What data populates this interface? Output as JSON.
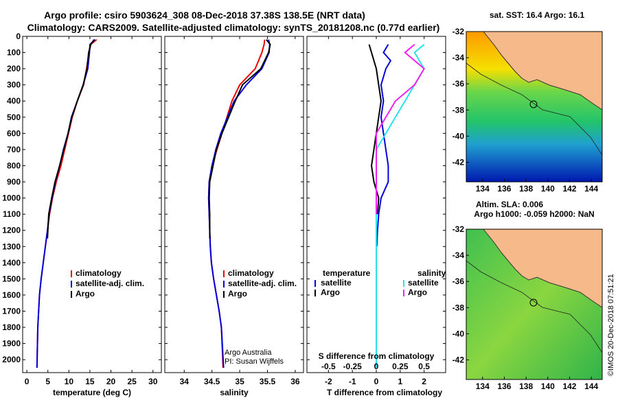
{
  "header": {
    "title1": "Argo profile: csiro 5903624_308 08-Dec-2018 37.38S 138.5E (NRT data)",
    "title2": "Climatology: CARS2009. Satellite-adjusted climatology: synTS_20181208.nc (0.77d earlier)"
  },
  "map_titles": {
    "sst": "sat. SST: 16.4 Argo: 16.1",
    "sla1": "Altim. SLA: 0.006",
    "sla2": "Argo h1000: -0.059 h2000: NaN"
  },
  "credit": {
    "argo": "Argo Australia",
    "pi": "PI: Susan Wijffels",
    "imos": "©IMOS 20-Dec-2018 07:51:21"
  },
  "colors": {
    "climatology": "#ee0000",
    "satellite": "#0000dd",
    "argo": "#000000",
    "sat_salinity": "#22e4ee",
    "argo_salinity": "#ee22ee",
    "land": "#f5b98a"
  },
  "chart_data": [
    {
      "type": "line",
      "panel": "temperature",
      "xlabel": "temperature (deg C)",
      "ylabel": "",
      "xlim": [
        -1,
        32
      ],
      "ylim": [
        2080,
        0
      ],
      "xticks": [
        0,
        5,
        10,
        15,
        20,
        25,
        30
      ],
      "yticks": [
        0,
        100,
        200,
        300,
        400,
        500,
        600,
        700,
        800,
        900,
        1000,
        1100,
        1200,
        1300,
        1400,
        1500,
        1600,
        1700,
        1800,
        1900,
        2000
      ],
      "legend": [
        "climatology",
        "satellite-adj. clim.",
        "Argo"
      ],
      "series": [
        {
          "name": "climatology",
          "color": "#ee0000",
          "x": [
            16.6,
            15.2,
            14.8,
            14.2,
            13.5,
            12.0,
            10.8,
            9.9,
            9.0,
            8.1,
            7.0,
            6.1,
            5.4,
            4.9,
            4.4,
            3.9,
            3.4,
            3.0,
            2.8,
            2.6,
            2.4
          ],
          "y": [
            20,
            50,
            100,
            200,
            300,
            400,
            500,
            600,
            700,
            800,
            900,
            1000,
            1100,
            1200,
            1300,
            1400,
            1500,
            1600,
            1700,
            1800,
            2050
          ]
        },
        {
          "name": "satellite-adj. clim.",
          "color": "#0000dd",
          "x": [
            16.2,
            15.0,
            14.9,
            14.5,
            13.4,
            12.0,
            10.6,
            9.8,
            8.7,
            7.8,
            6.8,
            6.0,
            5.3,
            4.9,
            4.4,
            3.9,
            3.4,
            3.0,
            2.8,
            2.6,
            2.4
          ],
          "y": [
            20,
            50,
            100,
            200,
            300,
            400,
            500,
            600,
            700,
            800,
            900,
            1000,
            1100,
            1200,
            1300,
            1400,
            1500,
            1600,
            1700,
            1800,
            2050
          ]
        },
        {
          "name": "Argo",
          "color": "#000000",
          "x": [
            16.0,
            15.2,
            14.7,
            14.3,
            13.4,
            12.0,
            10.7,
            9.8,
            8.8,
            7.8,
            6.7,
            5.9,
            5.2,
            4.9
          ],
          "y": [
            20,
            50,
            100,
            200,
            300,
            400,
            500,
            600,
            700,
            800,
            900,
            1000,
            1100,
            1250
          ]
        }
      ]
    },
    {
      "type": "line",
      "panel": "salinity",
      "xlabel": "salinity",
      "ylabel": "",
      "xlim": [
        33.65,
        36.15
      ],
      "ylim": [
        2080,
        0
      ],
      "xticks": [
        34,
        34.5,
        35,
        35.5,
        36
      ],
      "legend": [
        "climatology",
        "satellite-adj. clim.",
        "Argo"
      ],
      "series": [
        {
          "name": "climatology",
          "color": "#ee0000",
          "x": [
            35.45,
            35.44,
            35.4,
            35.28,
            35.0,
            34.86,
            34.77,
            34.68,
            34.59,
            34.5,
            34.45,
            34.44,
            34.45,
            34.46,
            34.47,
            34.49,
            34.53,
            34.58,
            34.63,
            34.67,
            34.7
          ],
          "y": [
            20,
            50,
            100,
            200,
            300,
            400,
            500,
            600,
            700,
            800,
            900,
            1000,
            1100,
            1200,
            1300,
            1400,
            1500,
            1600,
            1700,
            1800,
            2050
          ]
        },
        {
          "name": "satellite-adj. clim.",
          "color": "#0000dd",
          "x": [
            35.52,
            35.54,
            35.53,
            35.4,
            35.12,
            34.9,
            34.78,
            34.66,
            34.57,
            34.5,
            34.45,
            34.44,
            34.45,
            34.46,
            34.47,
            34.49,
            34.53,
            34.58,
            34.63,
            34.67,
            34.71
          ],
          "y": [
            20,
            50,
            100,
            200,
            300,
            400,
            500,
            600,
            700,
            800,
            900,
            1000,
            1100,
            1200,
            1300,
            1400,
            1500,
            1600,
            1700,
            1800,
            2050
          ]
        },
        {
          "name": "Argo",
          "color": "#000000",
          "x": [
            35.48,
            35.55,
            35.52,
            35.38,
            35.05,
            34.92,
            34.8,
            34.68,
            34.58,
            34.52,
            34.46,
            34.45,
            34.46,
            34.46
          ],
          "y": [
            20,
            50,
            100,
            200,
            300,
            400,
            500,
            600,
            700,
            800,
            900,
            1000,
            1100,
            1250
          ]
        }
      ]
    },
    {
      "type": "line",
      "panel": "difference",
      "xlabel": "T difference from climatology",
      "xlabel2": "S difference from climatology",
      "xlim": [
        -2.9,
        2.9
      ],
      "ylim": [
        2080,
        0
      ],
      "xticks": [
        -2,
        -1,
        0,
        1,
        2
      ],
      "xticks2": [
        "-0.5",
        "-0.25",
        "0",
        "0.25",
        "0.5"
      ],
      "legend_left_title": "temperature",
      "legend_right_title": "salinity",
      "legend": [
        "satellite",
        "Argo",
        "satellite",
        "Argo"
      ],
      "series": [
        {
          "name": "satellite",
          "group": "temperature",
          "color": "#0000dd",
          "x": [
            0.5,
            0.3,
            0.6,
            0.4,
            0.2,
            0.3,
            0.2,
            0.3,
            0.4,
            0.5,
            0.5,
            0.2,
            0.1,
            0.05,
            0.02
          ],
          "y": [
            50,
            100,
            150,
            200,
            300,
            400,
            500,
            600,
            700,
            800,
            900,
            1000,
            1100,
            1200,
            1300
          ]
        },
        {
          "name": "Argo",
          "group": "temperature",
          "color": "#000000",
          "x": [
            -0.3,
            -0.2,
            -0.1,
            0.0,
            0.1,
            0.2,
            0.1,
            0.0,
            -0.1,
            -0.2,
            -0.1,
            0.1,
            0.05
          ],
          "y": [
            50,
            100,
            150,
            200,
            300,
            400,
            500,
            600,
            700,
            800,
            900,
            1000,
            1100
          ]
        },
        {
          "name": "satellite",
          "group": "salinity",
          "color": "#22e4ee",
          "x": [
            0.5,
            0.4,
            0.5,
            0.4,
            0.3,
            0.2,
            0.1,
            0.0,
            0.0,
            0.0,
            0.0,
            0.0,
            0.0,
            0.0,
            0.0
          ],
          "y": [
            50,
            100,
            200,
            300,
            400,
            500,
            600,
            700,
            800,
            1000,
            1200,
            1400,
            1600,
            1800,
            2050
          ]
        },
        {
          "name": "Argo",
          "group": "salinity",
          "color": "#ee22ee",
          "x": [
            0.4,
            0.3,
            0.5,
            0.4,
            0.2,
            0.1,
            0.0,
            0.0,
            0.0
          ],
          "y": [
            50,
            100,
            200,
            300,
            400,
            500,
            600,
            800,
            1100
          ]
        }
      ]
    }
  ],
  "maps": {
    "lon_ticks": [
      "134",
      "136",
      "138",
      "140",
      "142",
      "144"
    ],
    "lat_ticks": [
      "-32",
      "-34",
      "-36",
      "-38",
      "-40",
      "-42"
    ],
    "argo_position": {
      "lon": 138.5,
      "lat": -37.38
    }
  }
}
